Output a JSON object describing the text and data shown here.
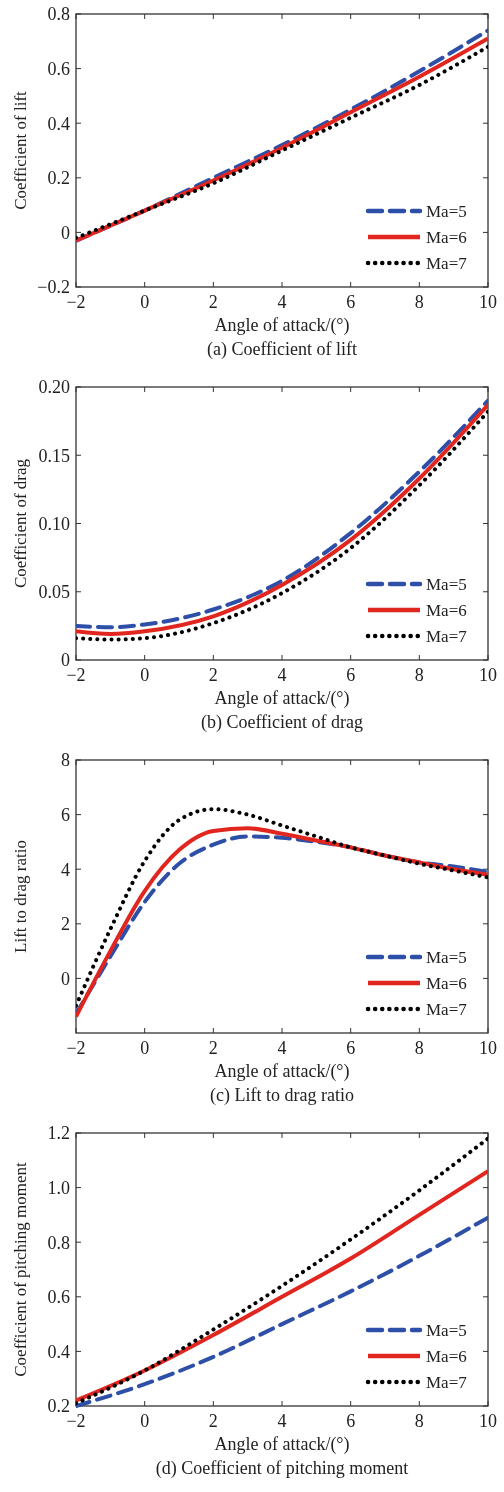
{
  "chart_data": [
    {
      "type": "line",
      "title": "(a) Coefficient of lift",
      "xlabel": "Angle of attack/(°)",
      "ylabel": "Coefficient of lift",
      "x": [
        -2,
        0,
        2,
        4,
        6,
        8,
        10
      ],
      "xlim": [
        -2,
        10
      ],
      "xticks": [
        -2,
        0,
        2,
        4,
        6,
        8,
        10
      ],
      "ylim": [
        -0.2,
        0.8
      ],
      "yticks": [
        -0.2,
        0,
        0.2,
        0.4,
        0.6,
        0.8
      ],
      "legend": "bottom right",
      "grid": false,
      "series": [
        {
          "name": "Ma=5",
          "color": "#2e4fa8",
          "line_style": "dashed",
          "values": [
            -0.03,
            0.08,
            0.2,
            0.32,
            0.45,
            0.59,
            0.74
          ]
        },
        {
          "name": "Ma=6",
          "color": "#e0261e",
          "line_style": "solid",
          "values": [
            -0.03,
            0.08,
            0.19,
            0.31,
            0.44,
            0.57,
            0.71
          ]
        },
        {
          "name": "Ma=7",
          "color": "#000000",
          "line_style": "dotted",
          "values": [
            -0.02,
            0.08,
            0.18,
            0.3,
            0.42,
            0.54,
            0.68
          ]
        }
      ]
    },
    {
      "type": "line",
      "title": "(b) Coefficient of drag",
      "xlabel": "Angle of attack/(°)",
      "ylabel": "Coefficient of drag",
      "x": [
        -2,
        -1,
        0,
        2,
        4,
        6,
        8,
        10
      ],
      "xlim": [
        -2,
        10
      ],
      "xticks": [
        -2,
        0,
        2,
        4,
        6,
        8,
        10
      ],
      "ylim": [
        0,
        0.2
      ],
      "yticks": [
        0,
        0.05,
        {
          "value": 0.1,
          "label": "0.10"
        },
        0.15,
        {
          "value": 0.2,
          "label": "0.20"
        }
      ],
      "legend": "bottom right",
      "grid": false,
      "series": [
        {
          "name": "Ma=5",
          "color": "#2e4fa8",
          "line_style": "dashed",
          "values": [
            0.025,
            0.024,
            0.026,
            0.037,
            0.058,
            0.093,
            0.138,
            0.19
          ]
        },
        {
          "name": "Ma=6",
          "color": "#e0261e",
          "line_style": "solid",
          "values": [
            0.021,
            0.019,
            0.021,
            0.032,
            0.055,
            0.088,
            0.133,
            0.187
          ]
        },
        {
          "name": "Ma=7",
          "color": "#000000",
          "line_style": "dotted",
          "values": [
            0.016,
            0.015,
            0.016,
            0.027,
            0.049,
            0.082,
            0.128,
            0.182
          ]
        }
      ]
    },
    {
      "type": "line",
      "title": "(c) Lift to drag ratio",
      "xlabel": "Angle of attack/(°)",
      "ylabel": "Lift to drag ratio",
      "x": [
        -2,
        -1,
        0,
        1,
        2,
        3,
        4,
        5,
        6,
        7,
        8,
        9,
        10
      ],
      "xlim": [
        -2,
        10
      ],
      "xticks": [
        -2,
        0,
        2,
        4,
        6,
        8,
        10
      ],
      "ylim": [
        -2,
        8
      ],
      "yticks": [
        0,
        2,
        4,
        6,
        8
      ],
      "legend": "bottom right",
      "grid": false,
      "series": [
        {
          "name": "Ma=5",
          "color": "#2e4fa8",
          "line_style": "dashed",
          "values": [
            -1.3,
            0.8,
            2.8,
            4.2,
            4.9,
            5.2,
            5.15,
            5.0,
            4.8,
            4.5,
            4.25,
            4.1,
            3.9
          ]
        },
        {
          "name": "Ma=6",
          "color": "#e0261e",
          "line_style": "solid",
          "values": [
            -1.4,
            1.0,
            3.2,
            4.7,
            5.4,
            5.5,
            5.3,
            5.05,
            4.8,
            4.5,
            4.25,
            4.0,
            3.8
          ]
        },
        {
          "name": "Ma=7",
          "color": "#000000",
          "line_style": "dotted",
          "values": [
            -1.0,
            1.8,
            4.3,
            5.8,
            6.2,
            6.0,
            5.6,
            5.2,
            4.8,
            4.5,
            4.2,
            3.95,
            3.7
          ]
        }
      ]
    },
    {
      "type": "line",
      "title": "(d) Coefficient of pitching moment",
      "xlabel": "Angle of attack/(°)",
      "ylabel": "Coefficient of pitching moment",
      "x": [
        -2,
        0,
        2,
        4,
        6,
        8,
        10
      ],
      "xlim": [
        -2,
        10
      ],
      "xticks": [
        -2,
        0,
        2,
        4,
        6,
        8,
        10
      ],
      "ylim": [
        0.2,
        1.2
      ],
      "yticks": [
        0.2,
        0.4,
        0.6,
        0.8,
        {
          "value": 1,
          "label": "1.0"
        },
        1.2
      ],
      "legend": "bottom right",
      "grid": false,
      "series": [
        {
          "name": "Ma=5",
          "color": "#2e4fa8",
          "line_style": "dashed",
          "values": [
            0.2,
            0.28,
            0.38,
            0.5,
            0.62,
            0.75,
            0.89
          ]
        },
        {
          "name": "Ma=6",
          "color": "#e0261e",
          "line_style": "solid",
          "values": [
            0.22,
            0.33,
            0.46,
            0.6,
            0.74,
            0.9,
            1.06
          ]
        },
        {
          "name": "Ma=7",
          "color": "#000000",
          "line_style": "dotted",
          "values": [
            0.21,
            0.33,
            0.48,
            0.64,
            0.81,
            0.99,
            1.18
          ]
        }
      ]
    }
  ]
}
